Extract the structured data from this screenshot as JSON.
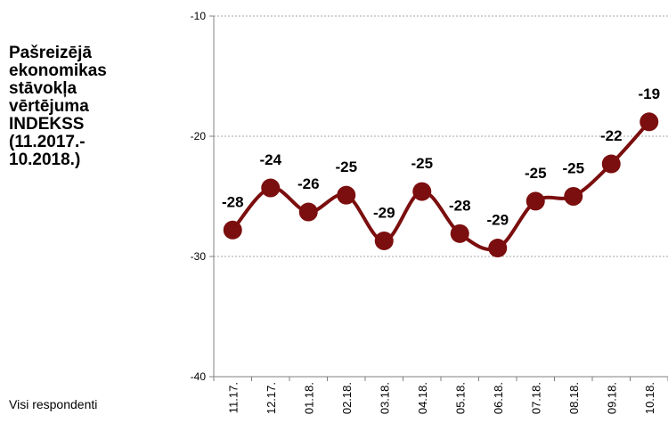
{
  "side_title": "Pašreizējā\nekonomikas\nstāvokļa\nvērtējuma\nINDEKSS\n(11.2017.-\n10.2018.)",
  "side_note": "Visi respondenti",
  "colors": {
    "line": "#7b0e0e",
    "marker": "#7b0e0e",
    "grid": "#a6a6a6"
  },
  "chart_data": {
    "type": "line",
    "categories": [
      "11.17.",
      "12.17.",
      "01.18.",
      "02.18.",
      "03.18.",
      "04.18.",
      "05.18.",
      "06.18.",
      "07.18.",
      "08.18.",
      "09.18.",
      "10.18."
    ],
    "series": [
      {
        "values": [
          -27.8,
          -24.3,
          -26.3,
          -24.9,
          -28.7,
          -24.6,
          -28.1,
          -29.3,
          -25.4,
          -25.0,
          -22.3,
          -18.8
        ]
      }
    ],
    "data_labels": [
      "-28",
      "-24",
      "-26",
      "-25",
      "-29",
      "-25",
      "-28",
      "-29",
      "-25",
      "-25",
      "-22",
      "-19"
    ],
    "ylim": [
      -40,
      -10
    ],
    "yticks": [
      -10,
      -20,
      -30,
      -40
    ],
    "grid": true,
    "legend": "none"
  }
}
